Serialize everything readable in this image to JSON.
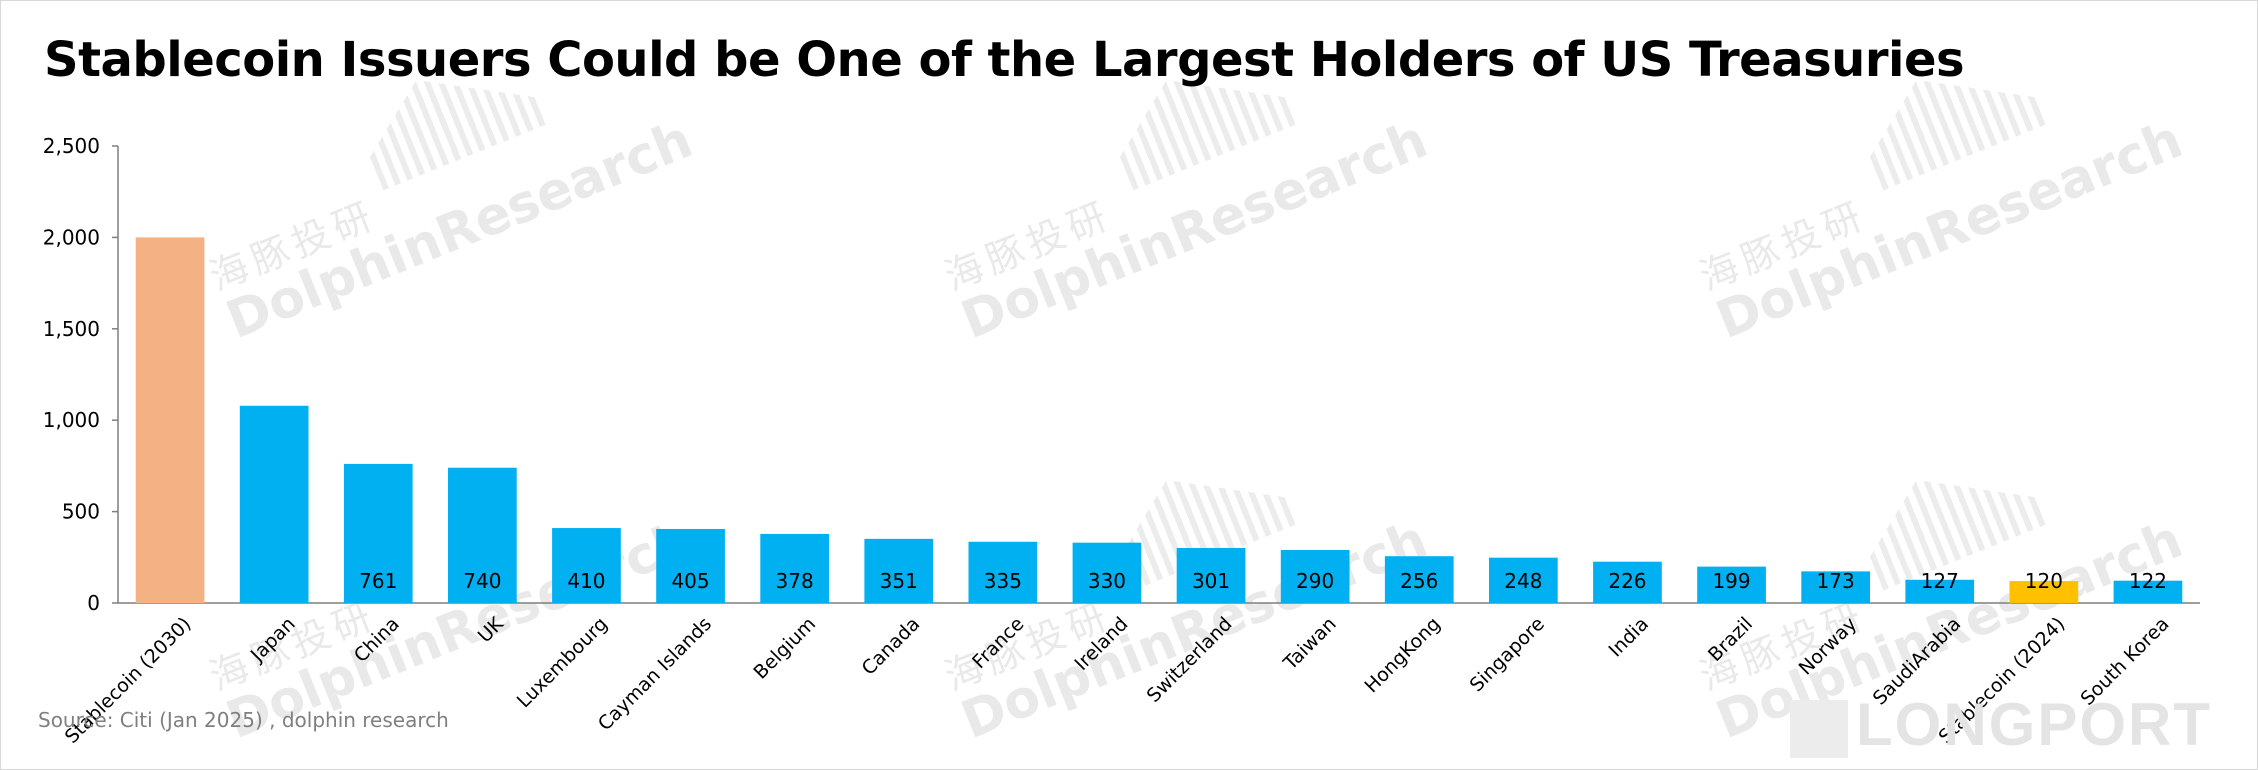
{
  "title": "Stablecoin Issuers Could be One of the Largest Holders of US Treasuries",
  "source": "Source: Citi (Jan 2025) , dolphin research",
  "watermark": {
    "cn": "海豚投研",
    "en": "DolphinResearch"
  },
  "logo_text": "LONGPORT",
  "colors": {
    "stablecoin_2030": "#F4B183",
    "country": "#00B0F0",
    "stablecoin_2024": "#FFC000",
    "axis": "#7f7f7f"
  },
  "chart_data": {
    "type": "bar",
    "title": "Stablecoin Issuers Could be One of the Largest Holders of US Treasuries",
    "xlabel": "",
    "ylabel": "",
    "ylim": [
      0,
      2500
    ],
    "yticks": [
      0,
      500,
      1000,
      1500,
      2000,
      2500
    ],
    "ytick_labels": [
      "0",
      "500",
      "1,000",
      "1,500",
      "2,000",
      "2,500"
    ],
    "grid": false,
    "categories": [
      "Stablecoin (2030)",
      "Japan",
      "China",
      "UK",
      "Luxembourg",
      "Cayman Islands",
      "Belgium",
      "Canada",
      "France",
      "Ireland",
      "Switzerland",
      "Taiwan",
      "HongKong",
      "Singapore",
      "India",
      "Brazil",
      "Norway",
      "SaudiArabia",
      "Stablecoin (2024)",
      "South Korea"
    ],
    "values": [
      2000,
      1079,
      761,
      740,
      410,
      405,
      378,
      351,
      335,
      330,
      301,
      290,
      256,
      248,
      226,
      199,
      173,
      127,
      120,
      122
    ],
    "data_labels": [
      "",
      "",
      "761",
      "740",
      "410",
      "405",
      "378",
      "351",
      "335",
      "330",
      "301",
      "290",
      "256",
      "248",
      "226",
      "199",
      "173",
      "127",
      "120",
      "122"
    ],
    "bar_color_keys": [
      "stablecoin_2030",
      "country",
      "country",
      "country",
      "country",
      "country",
      "country",
      "country",
      "country",
      "country",
      "country",
      "country",
      "country",
      "country",
      "country",
      "country",
      "country",
      "country",
      "stablecoin_2024",
      "country"
    ]
  }
}
